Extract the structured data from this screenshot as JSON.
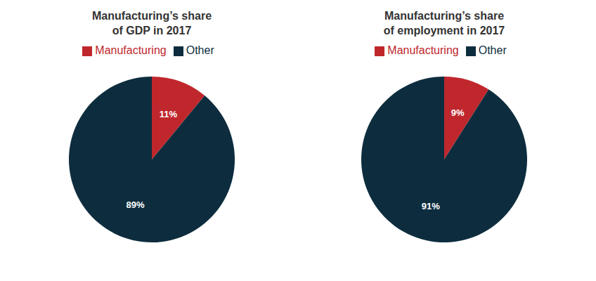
{
  "chart_data": [
    {
      "type": "pie",
      "title": "Manufacturing’s share\nof GDP in 2017",
      "categories": [
        "Manufacturing",
        "Other"
      ],
      "values": [
        11,
        89
      ],
      "value_labels": [
        "11%",
        "89%"
      ],
      "colors": [
        "#c0272d",
        "#0d2d3e"
      ],
      "data_labels": true,
      "legend": "top"
    },
    {
      "type": "pie",
      "title": "Manufacturing’s share\nof employment in 2017",
      "categories": [
        "Manufacturing",
        "Other"
      ],
      "values": [
        9,
        91
      ],
      "value_labels": [
        "9%",
        "91%"
      ],
      "colors": [
        "#c0272d",
        "#0d2d3e"
      ],
      "data_labels": true,
      "legend": "top"
    }
  ]
}
